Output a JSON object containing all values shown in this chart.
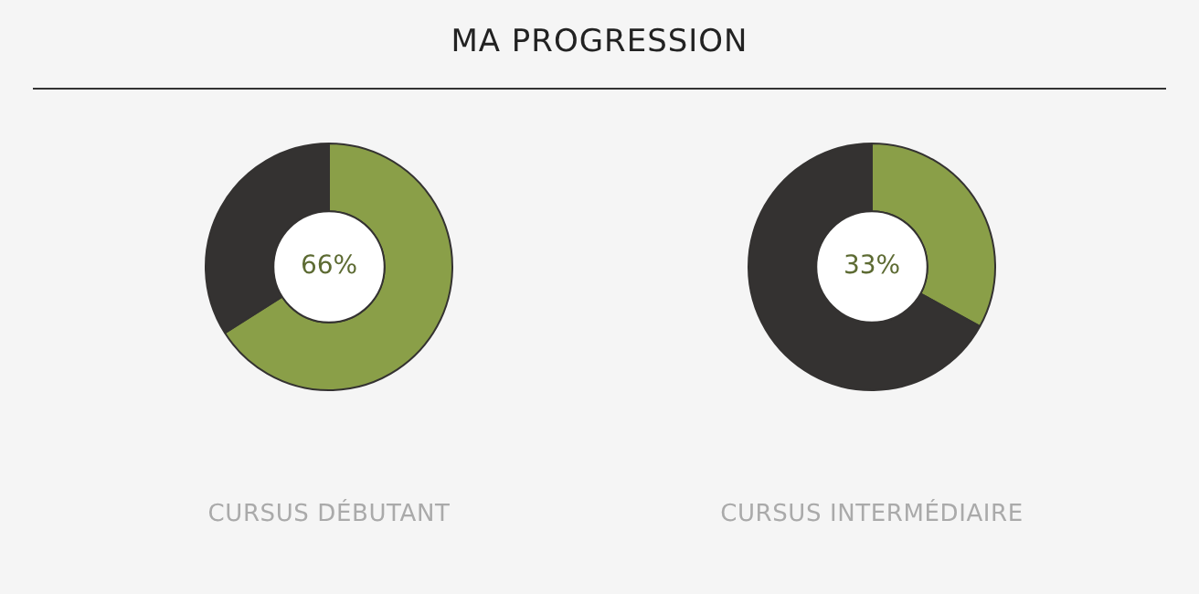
{
  "chart_data": [
    {
      "type": "donut",
      "title": "MA PROGRESSION",
      "xlabel": "CURSUS DÉBUTANT",
      "categories": [
        null,
        null
      ],
      "values": [
        66,
        34
      ],
      "colors": [
        "#8a9f48",
        "#343231"
      ],
      "annotations": [
        "66%"
      ],
      "legend": false
    },
    {
      "type": "donut",
      "xlabel": "CURSUS INTERMÉDIAIRE",
      "categories": [
        null,
        null
      ],
      "values": [
        33,
        67
      ],
      "colors": [
        "#8a9f48",
        "#343231"
      ],
      "annotations": [
        "33%"
      ],
      "legend": false
    }
  ]
}
